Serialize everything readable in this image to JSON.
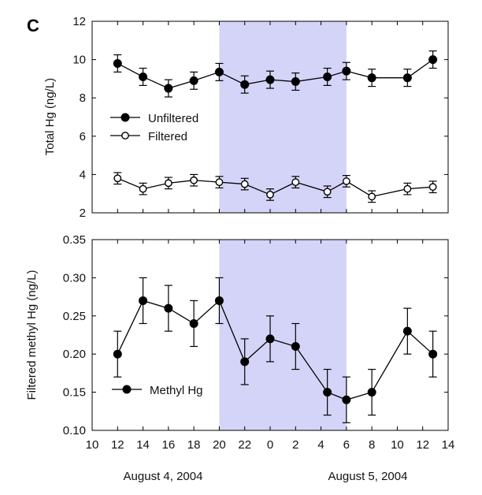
{
  "figure": {
    "panel_letter": "C",
    "date_labels": [
      "August 4, 2004",
      "August 5, 2004"
    ]
  },
  "colors": {
    "shade": "#d4d4f8",
    "ink": "#000000"
  },
  "chart_data": [
    {
      "type": "line",
      "ylabel": "Total Hg (ng/L)",
      "ylim": [
        2,
        12
      ],
      "yticks": [
        2,
        4,
        6,
        8,
        10,
        12
      ],
      "x_tick_labels": [
        "10",
        "12",
        "14",
        "16",
        "18",
        "20",
        "22",
        "0",
        "2",
        "4",
        "6",
        "8",
        "10",
        "12",
        "14"
      ],
      "x": [
        12,
        14,
        16,
        18,
        20,
        22,
        24,
        26,
        28.5,
        30,
        32,
        34.8,
        36.8
      ],
      "shaded_region": [
        20,
        30
      ],
      "series": [
        {
          "name": "Unfiltered",
          "marker": "filled-circle",
          "values": [
            9.8,
            9.1,
            8.5,
            8.9,
            9.35,
            8.7,
            8.95,
            8.85,
            9.1,
            9.4,
            9.05,
            9.05,
            10.0
          ],
          "errors": [
            0.45,
            0.45,
            0.45,
            0.45,
            0.45,
            0.45,
            0.45,
            0.45,
            0.45,
            0.45,
            0.45,
            0.45,
            0.45
          ]
        },
        {
          "name": "Filtered",
          "marker": "open-circle",
          "values": [
            3.8,
            3.25,
            3.55,
            3.7,
            3.6,
            3.5,
            2.95,
            3.6,
            3.1,
            3.65,
            2.85,
            3.25,
            3.35
          ],
          "errors": [
            0.3,
            0.3,
            0.3,
            0.3,
            0.3,
            0.3,
            0.3,
            0.3,
            0.3,
            0.3,
            0.3,
            0.3,
            0.3
          ]
        }
      ],
      "legend": "center-left",
      "grid": false
    },
    {
      "type": "line",
      "ylabel": "Filtered methyl Hg (ng/L)",
      "ylim": [
        0.1,
        0.35
      ],
      "yticks": [
        "0.10",
        "0.15",
        "0.20",
        "0.25",
        "0.30",
        "0.35"
      ],
      "x_tick_labels": [
        "10",
        "12",
        "14",
        "16",
        "18",
        "20",
        "22",
        "0",
        "2",
        "4",
        "6",
        "8",
        "10",
        "12",
        "14"
      ],
      "x": [
        12,
        14,
        16,
        18,
        20,
        22,
        24,
        26,
        28.5,
        30,
        32,
        34.8,
        36.8
      ],
      "shaded_region": [
        20,
        30
      ],
      "series": [
        {
          "name": "Methyl Hg",
          "marker": "filled-circle",
          "values": [
            0.2,
            0.27,
            0.26,
            0.24,
            0.27,
            0.19,
            0.22,
            0.21,
            0.15,
            0.14,
            0.15,
            0.23,
            0.2
          ],
          "errors": [
            0.03,
            0.03,
            0.03,
            0.03,
            0.03,
            0.03,
            0.03,
            0.03,
            0.03,
            0.03,
            0.03,
            0.03,
            0.03
          ]
        }
      ],
      "legend": "bottom-left",
      "grid": false
    }
  ]
}
